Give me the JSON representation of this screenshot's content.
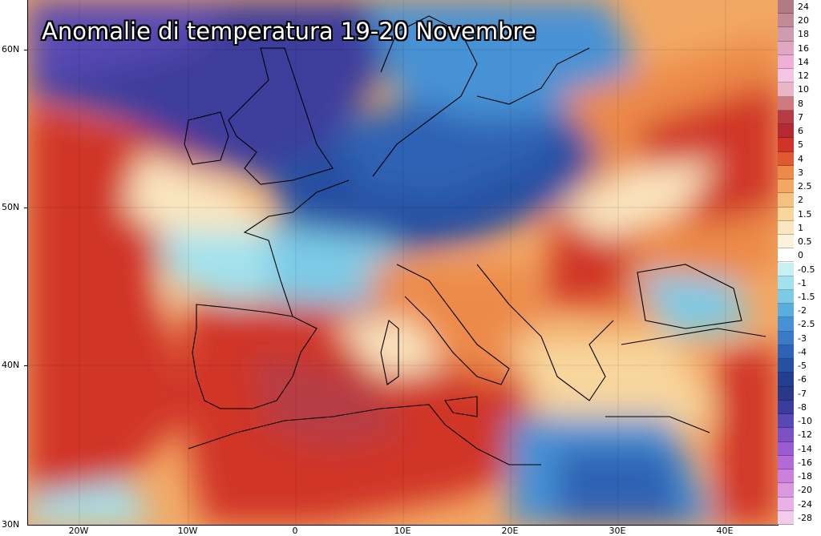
{
  "title": "Anomalie di temperatura 19-20 Novembre",
  "lat_labels": [
    "60N",
    "50N",
    "40N",
    "30N"
  ],
  "lon_labels": [
    "20W",
    "10W",
    "0",
    "10E",
    "20E",
    "30E",
    "40E"
  ],
  "legend": {
    "labels": [
      "24",
      "20",
      "18",
      "16",
      "14",
      "12",
      "10",
      "8",
      "7",
      "6",
      "5",
      "4",
      "3",
      "2.5",
      "2",
      "1.5",
      "1",
      "0.5",
      "0",
      "-0.5",
      "-1",
      "-1.5",
      "-2",
      "-2.5",
      "-3",
      "-4",
      "-5",
      "-6",
      "-7",
      "-8",
      "-10",
      "-12",
      "-14",
      "-16",
      "-18",
      "-20",
      "-24",
      "-28"
    ],
    "colors": [
      "#b07a86",
      "#c08a96",
      "#d09ab0",
      "#e0a6c4",
      "#f0b0d6",
      "#f4c6e4",
      "#e8b6c6",
      "#d07a80",
      "#b63c44",
      "#b42a30",
      "#d03428",
      "#e05a30",
      "#ec8a4a",
      "#f2a864",
      "#f6c07e",
      "#f8d69c",
      "#fae6c0",
      "#fbf2dc",
      "#ffffff",
      "#c8f0f4",
      "#a2e2ee",
      "#7ccae6",
      "#5aaede",
      "#4692d4",
      "#3a7ac6",
      "#2e62b4",
      "#2650a2",
      "#223e90",
      "#2a3888",
      "#3c3c9c",
      "#5848b4",
      "#7a52c6",
      "#9a5cd2",
      "#b46ad6",
      "#cc80da",
      "#dc98de",
      "#e8b2e6",
      "#f2cced"
    ]
  },
  "colors": {
    "title_text": "#ffffff",
    "title_outline": "#000000",
    "cold_deep": "#3c3c9c",
    "cold": "#2e62b4",
    "cool": "#7ccae6",
    "neutral": "#fbf2dc",
    "warm": "#ec8a4a",
    "hot": "#d03428",
    "very_hot": "#b63c44"
  }
}
